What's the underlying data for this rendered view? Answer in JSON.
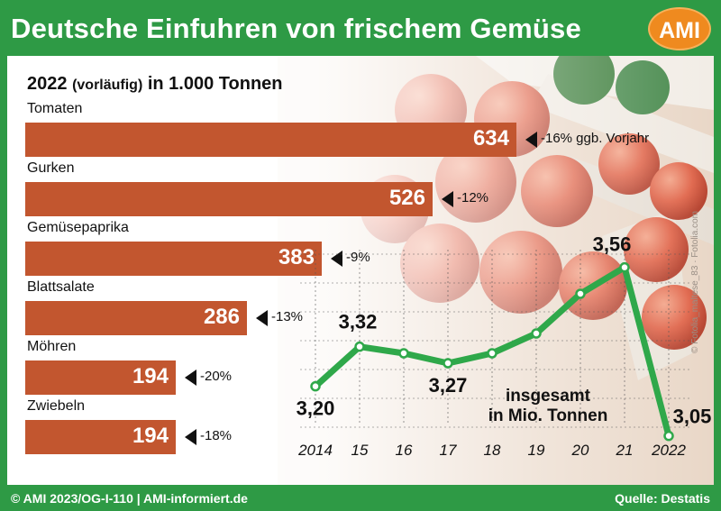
{
  "title": "Deutsche Einfuhren von frischem Gemüse",
  "logo": "AMI",
  "subtitle": {
    "year": "2022",
    "qualifier": "(vorläufig)",
    "unit": "in 1.000 Tonnen"
  },
  "colors": {
    "frame": "#2e9a45",
    "bar": "#c2562f",
    "line": "#2fa84a",
    "logo": "#ef8a1f"
  },
  "photo_credit": "© Fotolia_maltese_83 · Fotolia.com",
  "footer": {
    "left": "© AMI 2023/OG-I-110 | AMI-informiert.de",
    "right": "Quelle: Destatis"
  },
  "chart_data": [
    {
      "type": "bar",
      "orientation": "horizontal",
      "title": "2022 (vorläufig) in 1.000 Tonnen",
      "categories": [
        "Tomaten",
        "Gurken",
        "Gemüsepaprika",
        "Blattsalate",
        "Möhren",
        "Zwiebeln"
      ],
      "values": [
        634,
        526,
        383,
        286,
        194,
        194
      ],
      "value_labels": [
        "634",
        "526",
        "383",
        "286",
        "194",
        "194"
      ],
      "changes": [
        "-16% ggb. Vorjahr",
        "-12%",
        "-9%",
        "-13%",
        "-20%",
        "-18%"
      ]
    },
    {
      "type": "line",
      "title": "insgesamt in Mio. Tonnen",
      "annotation_lines": [
        "insgesamt",
        "in Mio. Tonnen"
      ],
      "x": [
        2014,
        2015,
        2016,
        2017,
        2018,
        2019,
        2020,
        2021,
        2022
      ],
      "x_tick_labels": [
        "2014",
        "15",
        "16",
        "17",
        "18",
        "19",
        "20",
        "21",
        "2022"
      ],
      "values": [
        3.2,
        3.32,
        3.3,
        3.27,
        3.3,
        3.36,
        3.48,
        3.56,
        3.05
      ],
      "point_labels": [
        "3,20",
        "3,32",
        "",
        "3,27",
        "",
        "",
        "",
        "3,56",
        "3,05"
      ],
      "ylim": [
        3.0,
        3.6
      ],
      "grid": true
    }
  ]
}
